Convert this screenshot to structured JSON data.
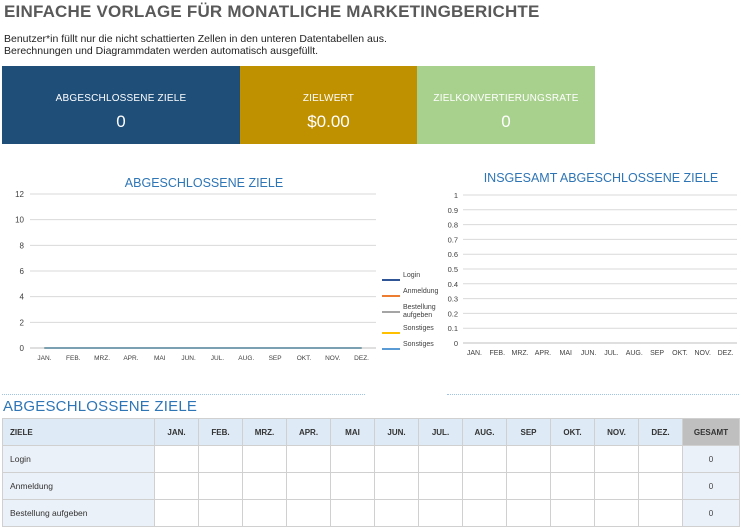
{
  "header": {
    "title": "EINFACHE VORLAGE FÜR MONATLICHE MARKETINGBERICHTE",
    "desc_line1": "Benutzer*in füllt nur die nicht schattierten Zellen in den unteren Datentabellen aus.",
    "desc_line2": "Berechnungen und Diagrammdaten werden automatisch ausgefüllt."
  },
  "kpis": {
    "goals_completed": {
      "label": "ABGESCHLOSSENE ZIELE",
      "value": "0"
    },
    "goal_value": {
      "label": "ZIELWERT",
      "value": "$0.00"
    },
    "conversion_rate": {
      "label": "ZIELKONVERTIERUNGSRATE",
      "value": "0"
    }
  },
  "colors": {
    "kpi1": "#1f4e79",
    "kpi2": "#bf9000",
    "kpi3": "#a9d18e",
    "accent": "#2e75b6"
  },
  "chart_data": [
    {
      "type": "line",
      "title": "ABGESCHLOSSENE ZIELE",
      "categories": [
        "JAN.",
        "FEB.",
        "MRZ.",
        "APR.",
        "MAI",
        "JUN.",
        "JUL.",
        "AUG.",
        "SEP",
        "OKT.",
        "NOV.",
        "DEZ."
      ],
      "ylim": [
        0,
        12
      ],
      "yticks": [
        "0",
        "2",
        "4",
        "6",
        "8",
        "10",
        "12"
      ],
      "legend_position": "right",
      "series": [
        {
          "name": "Login",
          "color": "#2f5597",
          "values": [
            0,
            0,
            0,
            0,
            0,
            0,
            0,
            0,
            0,
            0,
            0,
            0
          ]
        },
        {
          "name": "Anmeldung",
          "color": "#ed7d31",
          "values": [
            0,
            0,
            0,
            0,
            0,
            0,
            0,
            0,
            0,
            0,
            0,
            0
          ]
        },
        {
          "name": "Bestellung aufgeben",
          "name_line1": "Bestellung",
          "name_line2": "aufgeben",
          "color": "#a5a5a5",
          "values": [
            0,
            0,
            0,
            0,
            0,
            0,
            0,
            0,
            0,
            0,
            0,
            0
          ]
        },
        {
          "name": "Sonstiges",
          "color": "#ffc000",
          "values": [
            0,
            0,
            0,
            0,
            0,
            0,
            0,
            0,
            0,
            0,
            0,
            0
          ]
        },
        {
          "name": "Sonstiges",
          "color": "#5b9bd5",
          "values": [
            0,
            0,
            0,
            0,
            0,
            0,
            0,
            0,
            0,
            0,
            0,
            0
          ]
        }
      ]
    },
    {
      "type": "bar",
      "title": "INSGESAMT ABGESCHLOSSENE ZIELE",
      "categories": [
        "JAN.",
        "FEB.",
        "MRZ.",
        "APR.",
        "MAI",
        "JUN.",
        "JUL.",
        "AUG.",
        "SEP",
        "OKT.",
        "NOV.",
        "DEZ."
      ],
      "ylim": [
        0,
        1
      ],
      "yticks": [
        "0",
        "0.1",
        "0.2",
        "0.3",
        "0.4",
        "0.5",
        "0.6",
        "0.7",
        "0.8",
        "0.9",
        "1"
      ],
      "values": [
        0,
        0,
        0,
        0,
        0,
        0,
        0,
        0,
        0,
        0,
        0,
        0
      ]
    }
  ],
  "table": {
    "section_title": "ABGESCHLOSSENE ZIELE",
    "header_first": "ZIELE",
    "months": [
      "JAN.",
      "FEB.",
      "MRZ.",
      "APR.",
      "MAI",
      "JUN.",
      "JUL.",
      "AUG.",
      "SEP",
      "OKT.",
      "NOV.",
      "DEZ."
    ],
    "header_total": "GESAMT",
    "rows": [
      {
        "label": "Login",
        "total": "0"
      },
      {
        "label": "Anmeldung",
        "total": "0"
      },
      {
        "label": "Bestellung aufgeben",
        "total": "0"
      }
    ]
  }
}
